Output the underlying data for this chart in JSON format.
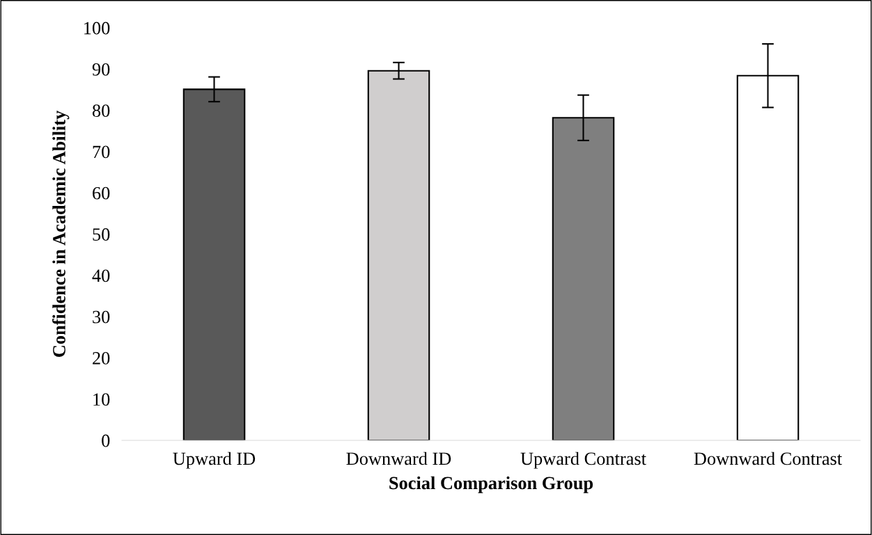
{
  "chart_data": {
    "type": "bar",
    "xlabel": "Social Comparison Group",
    "ylabel": "Confidence in Academic Ability",
    "categories": [
      "Upward ID",
      "Downward ID",
      "Upward Contrast",
      "Downward Contrast"
    ],
    "values": [
      85.1,
      89.6,
      78.2,
      88.4
    ],
    "colors": [
      "#595959",
      "#d0cece",
      "#7f7f7f",
      "#ffffff"
    ],
    "errors": [
      3,
      2,
      5.5,
      7.7
    ],
    "ylim": [
      0,
      100
    ],
    "yticks": [
      0,
      10,
      20,
      30,
      40,
      50,
      60,
      70,
      80,
      90,
      100
    ],
    "grid": false,
    "legend": false
  }
}
